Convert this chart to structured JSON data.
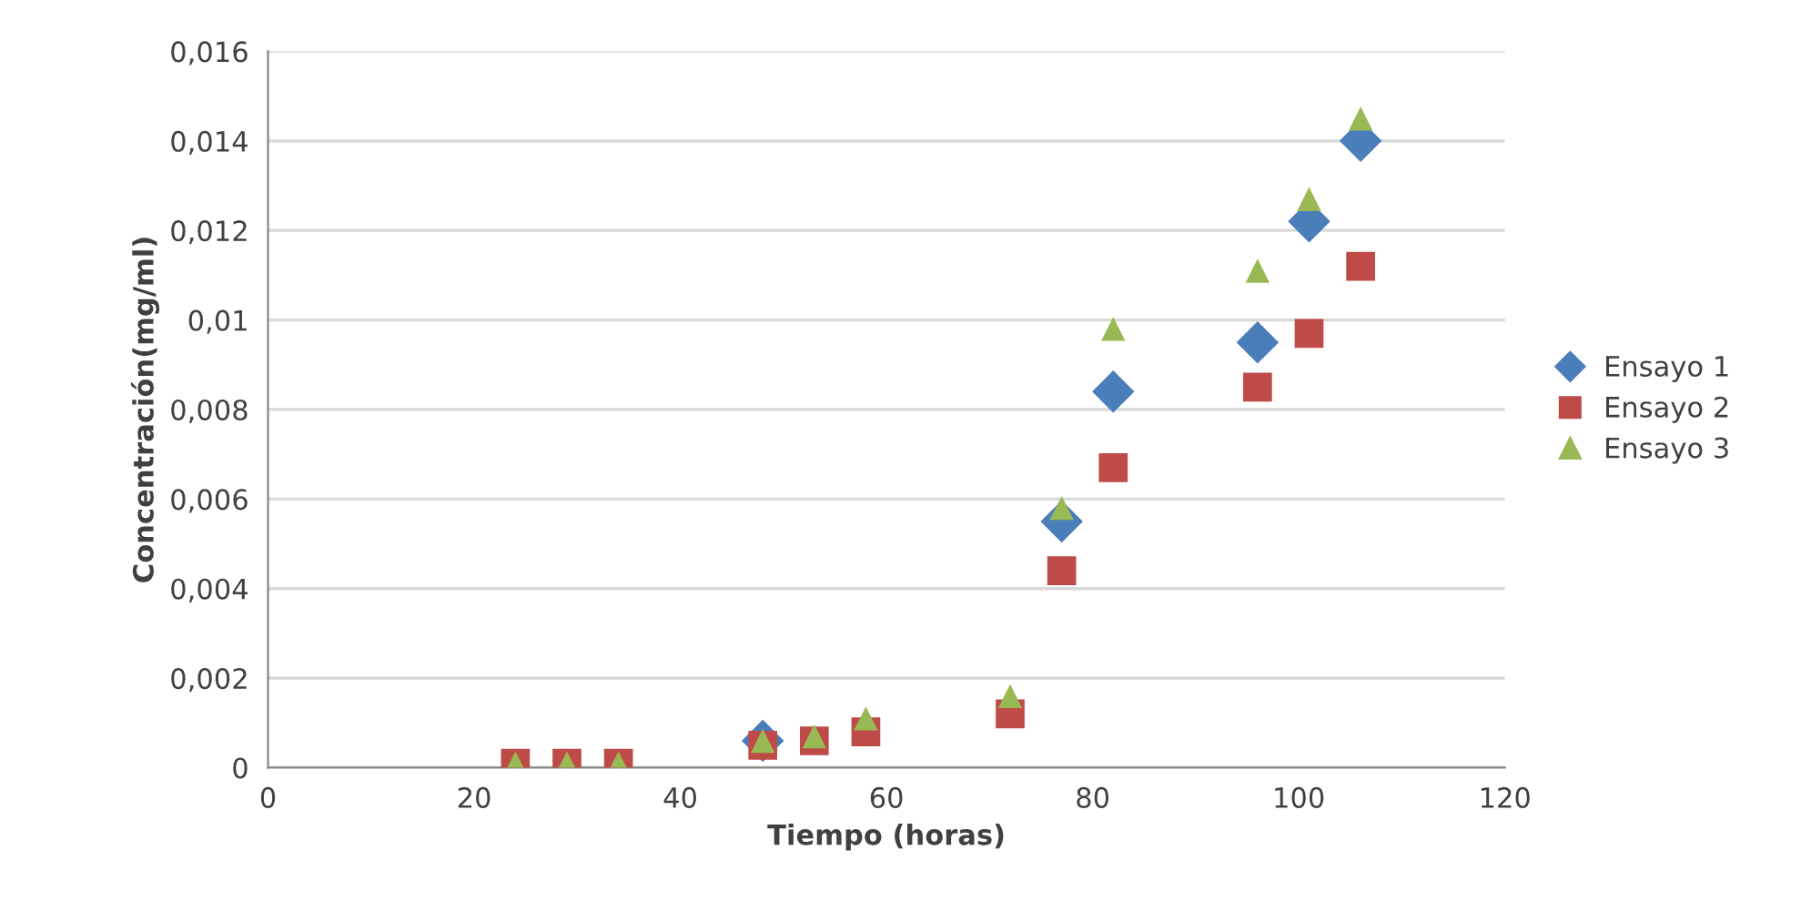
{
  "chart_data": {
    "type": "scatter",
    "xlabel": "Tiempo (horas)",
    "ylabel": "Concentración(mg/ml)",
    "x": [
      24,
      29,
      34,
      48,
      53,
      58,
      72,
      77,
      82,
      96,
      101,
      106
    ],
    "series": [
      {
        "name": "Ensayo 1",
        "color": "#4a7ebb",
        "marker": "diamond",
        "values": [
          null,
          null,
          null,
          0.0006,
          null,
          null,
          null,
          0.0055,
          0.0084,
          0.0095,
          0.0122,
          0.014
        ]
      },
      {
        "name": "Ensayo 2",
        "color": "#be4b48",
        "marker": "square",
        "values": [
          0.0001,
          0.0001,
          0.0001,
          0.0005,
          0.0006,
          0.0008,
          0.0012,
          0.0044,
          0.0067,
          0.0085,
          0.0097,
          0.0112
        ]
      },
      {
        "name": "Ensayo 3",
        "color": "#98b954",
        "marker": "triangle",
        "values": [
          0.0001,
          0.0001,
          0.0001,
          0.0006,
          0.0007,
          0.0011,
          0.0016,
          0.0058,
          0.0098,
          0.0111,
          0.0127,
          0.0145
        ]
      }
    ],
    "xlim": [
      0,
      120
    ],
    "xticks": [
      0,
      20,
      40,
      60,
      80,
      100,
      120
    ],
    "ylim": [
      0,
      0.016
    ],
    "yticks": [
      {
        "value": 0,
        "label": "0"
      },
      {
        "value": 0.002,
        "label": "0,002"
      },
      {
        "value": 0.004,
        "label": "0,004"
      },
      {
        "value": 0.006,
        "label": "0,006"
      },
      {
        "value": 0.008,
        "label": "0,008"
      },
      {
        "value": 0.01,
        "label": "0,01"
      },
      {
        "value": 0.012,
        "label": "0,012"
      },
      {
        "value": 0.014,
        "label": "0,014"
      },
      {
        "value": 0.016,
        "label": "0,016"
      }
    ],
    "grid": "y",
    "legend": "right"
  }
}
